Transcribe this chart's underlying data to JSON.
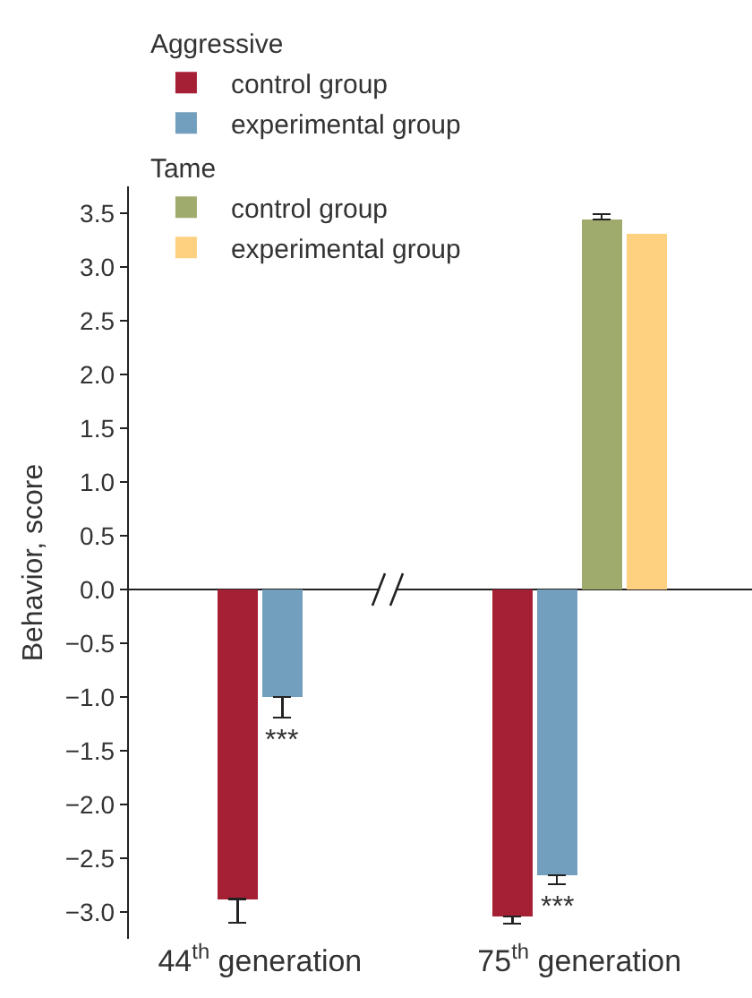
{
  "chart_data": {
    "type": "bar",
    "ylabel": "Behavior, score",
    "categories": [
      "44$^{th}$ generation",
      "75$^{th}$ generation"
    ],
    "legend_title": "Aggressive",
    "series": [
      {
        "name": "control group",
        "color": "#a52035",
        "values": [
          -2.88,
          -3.04
        ],
        "errors": [
          [
            -3.1,
            -2.88
          ],
          [
            -3.11,
            -3.04
          ]
        ]
      },
      {
        "name": "experimental group",
        "color": "#729fbd",
        "values": [
          -1.0,
          -2.66
        ],
        "errors": [
          [
            -1.19,
            -1.0
          ],
          [
            -2.74,
            -2.66
          ]
        ]
      },
      {
        "name": "control group",
        "color": "#9fab6c",
        "values": [
          null,
          3.44
        ],
        "errors": [
          null,
          [
            3.44,
            3.49
          ]
        ]
      },
      {
        "name": "experimental group",
        "color": "#fdd17f",
        "values": [
          null,
          3.31
        ]
      }
    ],
    "annotations": [
      "Tame",
      {
        "text": "***",
        "x": "44$^{th}$ generation",
        "y": -1.19
      },
      {
        "text": "***",
        "x": "75$^{th}$ generation",
        "y": -2.74
      }
    ],
    "ylim": [
      -3.25,
      3.75
    ],
    "yticks": [
      {
        "value": -3,
        "label": "−3.0"
      },
      {
        "value": -2.5,
        "label": "−2.5"
      },
      {
        "value": -2,
        "label": "−2.0"
      },
      {
        "value": -1.5,
        "label": "−1.5"
      },
      {
        "value": -1,
        "label": "−1.0"
      },
      {
        "value": -0.5,
        "label": "−0.5"
      },
      {
        "value": 0,
        "label": "0.0"
      },
      {
        "value": 0.5,
        "label": "0.5"
      },
      {
        "value": 1,
        "label": "1.0"
      },
      {
        "value": 1.5,
        "label": "1.5"
      },
      {
        "value": 2,
        "label": "2.0"
      },
      {
        "value": 2.5,
        "label": "2.5"
      },
      {
        "value": 3,
        "label": "3.0"
      },
      {
        "value": 3.5,
        "label": "3.5"
      }
    ],
    "legend": "top left"
  }
}
